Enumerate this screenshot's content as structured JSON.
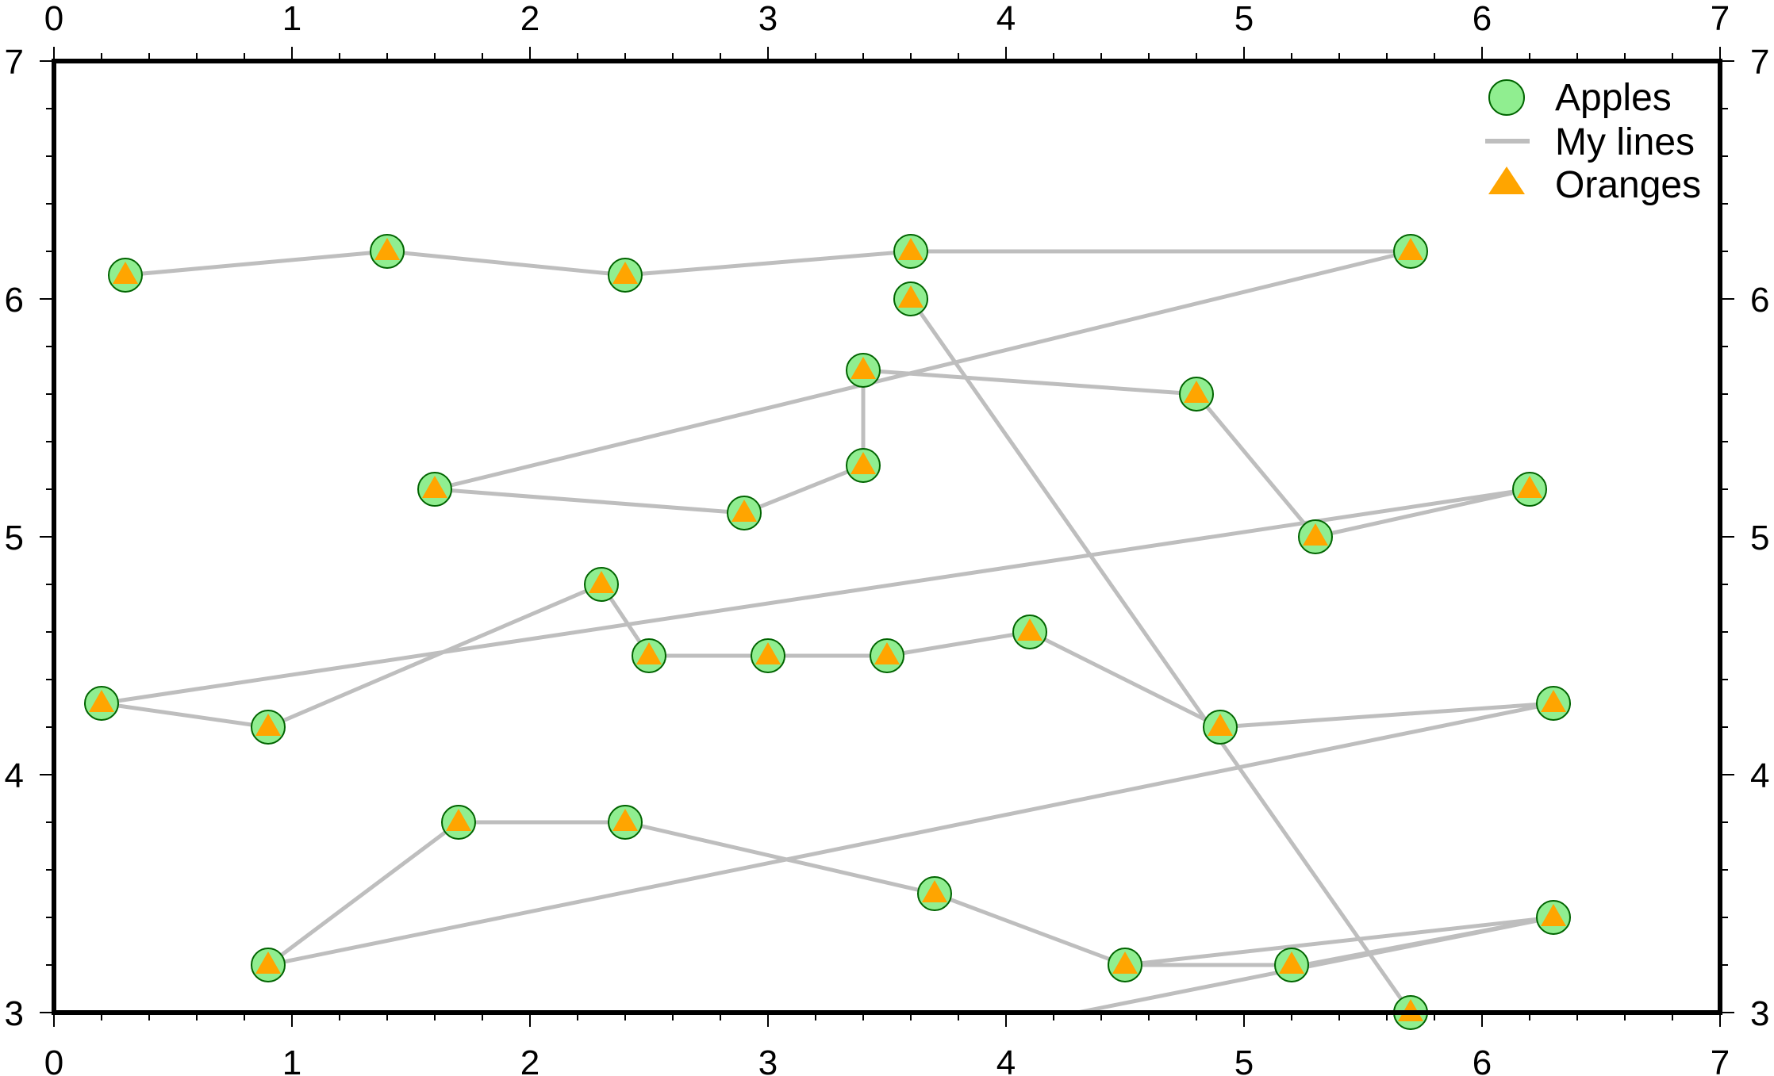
{
  "chart_data": {
    "type": "scatter",
    "xlim": [
      0,
      7
    ],
    "ylim": [
      3,
      7
    ],
    "xticks": [
      "0",
      "1",
      "2",
      "3",
      "4",
      "5",
      "6",
      "7"
    ],
    "yticks": [
      "3",
      "4",
      "5",
      "6",
      "7"
    ],
    "grid": false,
    "legend_position": "top-right",
    "legend": [
      {
        "label": "Apples",
        "marker": "circle"
      },
      {
        "label": "My lines",
        "marker": "line"
      },
      {
        "label": "Oranges",
        "marker": "triangle"
      }
    ],
    "colors": {
      "apples_fill": "#90ee90",
      "apples_edge": "#006400",
      "oranges": "#ffa500",
      "lines": "#bebebe",
      "frame": "#000000"
    },
    "series": [
      {
        "name": "My lines",
        "points": [
          [
            3.6,
            6.0
          ],
          [
            5.7,
            3.0
          ],
          [
            3.8,
            2.9
          ],
          [
            6.3,
            3.4
          ],
          [
            4.5,
            3.2
          ],
          [
            5.2,
            3.2
          ],
          [
            5.25,
            3.2
          ],
          [
            6.3,
            3.4
          ]
        ]
      },
      {
        "name": "My lines",
        "points": [
          [
            0.3,
            6.1
          ],
          [
            1.4,
            6.2
          ],
          [
            2.4,
            6.1
          ],
          [
            3.6,
            6.2
          ],
          [
            5.7,
            6.2
          ],
          [
            1.6,
            5.2
          ],
          [
            2.9,
            5.1
          ],
          [
            3.4,
            5.3
          ],
          [
            3.4,
            5.7
          ],
          [
            4.8,
            5.6
          ],
          [
            5.3,
            5.0
          ],
          [
            6.2,
            5.2
          ],
          [
            0.2,
            4.3
          ],
          [
            0.9,
            4.2
          ],
          [
            2.3,
            4.8
          ],
          [
            2.5,
            4.5
          ],
          [
            3.0,
            4.5
          ],
          [
            3.5,
            4.5
          ],
          [
            4.1,
            4.6
          ],
          [
            4.9,
            4.2
          ],
          [
            6.3,
            4.3
          ],
          [
            0.9,
            3.2
          ],
          [
            1.7,
            3.8
          ],
          [
            2.4,
            3.8
          ],
          [
            3.7,
            3.5
          ],
          [
            4.5,
            3.2
          ],
          [
            5.2,
            3.2
          ]
        ]
      }
    ],
    "markers": [
      [
        0.3,
        6.1
      ],
      [
        1.4,
        6.2
      ],
      [
        2.4,
        6.1
      ],
      [
        3.6,
        6.2
      ],
      [
        5.7,
        6.2
      ],
      [
        3.6,
        6.0
      ],
      [
        3.4,
        5.7
      ],
      [
        4.8,
        5.6
      ],
      [
        3.4,
        5.3
      ],
      [
        1.6,
        5.2
      ],
      [
        2.9,
        5.1
      ],
      [
        6.2,
        5.2
      ],
      [
        5.3,
        5.0
      ],
      [
        2.3,
        4.8
      ],
      [
        2.5,
        4.5
      ],
      [
        3.0,
        4.5
      ],
      [
        3.5,
        4.5
      ],
      [
        4.1,
        4.6
      ],
      [
        0.2,
        4.3
      ],
      [
        0.9,
        4.2
      ],
      [
        4.9,
        4.2
      ],
      [
        6.3,
        4.3
      ],
      [
        1.7,
        3.8
      ],
      [
        2.4,
        3.8
      ],
      [
        3.7,
        3.5
      ],
      [
        0.9,
        3.2
      ],
      [
        4.5,
        3.2
      ],
      [
        5.2,
        3.2
      ],
      [
        6.3,
        3.4
      ],
      [
        5.7,
        3.0
      ]
    ]
  }
}
